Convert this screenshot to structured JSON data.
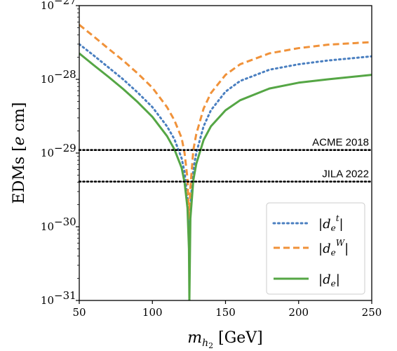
{
  "chart_data": {
    "type": "line",
    "xlabel": "m_h2 [GeV]",
    "ylabel": "EDMs [e cm]",
    "xlim": [
      50,
      250
    ],
    "ylim": [
      1e-31,
      1e-27
    ],
    "yscale": "log",
    "x_ticks": [
      {
        "value": 50,
        "label": "50"
      },
      {
        "value": 100,
        "label": "100"
      },
      {
        "value": 150,
        "label": "150"
      },
      {
        "value": 200,
        "label": "200"
      },
      {
        "value": 250,
        "label": "250"
      }
    ],
    "y_ticks": [
      {
        "value": -31,
        "label": "10",
        "exp": "−31"
      },
      {
        "value": -30,
        "label": "10",
        "exp": "−30"
      },
      {
        "value": -29,
        "label": "10",
        "exp": "−29"
      },
      {
        "value": -28,
        "label": "10",
        "exp": "−28"
      },
      {
        "value": -27,
        "label": "10",
        "exp": "−27"
      }
    ],
    "x": [
      50,
      60,
      70,
      80,
      90,
      100,
      110,
      115,
      120,
      122,
      124,
      125,
      125.3,
      126,
      128,
      130,
      135,
      140,
      150,
      160,
      180,
      200,
      220,
      250
    ],
    "series": [
      {
        "name": "|d_e^t|",
        "style": "dotted",
        "color": "#4a7fc0",
        "values": [
          3e-28,
          2.1e-28,
          1.45e-28,
          1e-28,
          6.6e-29,
          4.2e-29,
          2.3e-29,
          1.55e-29,
          8.5e-30,
          5.5e-30,
          2.5e-30,
          7e-31,
          null,
          1.9e-30,
          6e-30,
          1e-29,
          2.3e-29,
          3.8e-29,
          6.8e-29,
          9.5e-29,
          1.35e-28,
          1.6e-28,
          1.8e-28,
          2.05e-28
        ]
      },
      {
        "name": "|d_e^W|",
        "style": "dashed",
        "color": "#f0923a",
        "values": [
          5.5e-28,
          3.8e-28,
          2.6e-28,
          1.8e-28,
          1.2e-28,
          7.7e-29,
          4.2e-29,
          2.8e-29,
          1.6e-29,
          1e-29,
          4.5e-30,
          1.3e-30,
          null,
          3.4e-30,
          1.1e-29,
          1.8e-29,
          4e-29,
          6.5e-29,
          1.15e-28,
          1.6e-28,
          2.25e-28,
          2.65e-28,
          2.95e-28,
          3.2e-28
        ]
      },
      {
        "name": "|d_e|",
        "style": "solid",
        "color": "#55a645",
        "values": [
          2.25e-28,
          1.55e-28,
          1.08e-28,
          7.4e-29,
          4.9e-29,
          3.1e-29,
          1.7e-29,
          1.13e-29,
          6.3e-30,
          4e-30,
          1.8e-30,
          5e-31,
          1e-31,
          1.3e-30,
          4.3e-30,
          7.1e-30,
          1.5e-29,
          2.3e-29,
          3.8e-29,
          5.2e-29,
          7.5e-29,
          9e-29,
          1e-28,
          1.15e-28
        ]
      }
    ],
    "reference_lines": [
      {
        "name": "ACME 2018",
        "value": 1.1e-29
      },
      {
        "name": "JILA 2022",
        "value": 4.1e-30
      }
    ],
    "legend": {
      "placement": "lower-right",
      "entries": [
        {
          "style": "dotted",
          "color": "#4a7fc0"
        },
        {
          "style": "dashed",
          "color": "#f0923a"
        },
        {
          "style": "solid",
          "color": "#55a645"
        }
      ]
    },
    "grid": false
  }
}
